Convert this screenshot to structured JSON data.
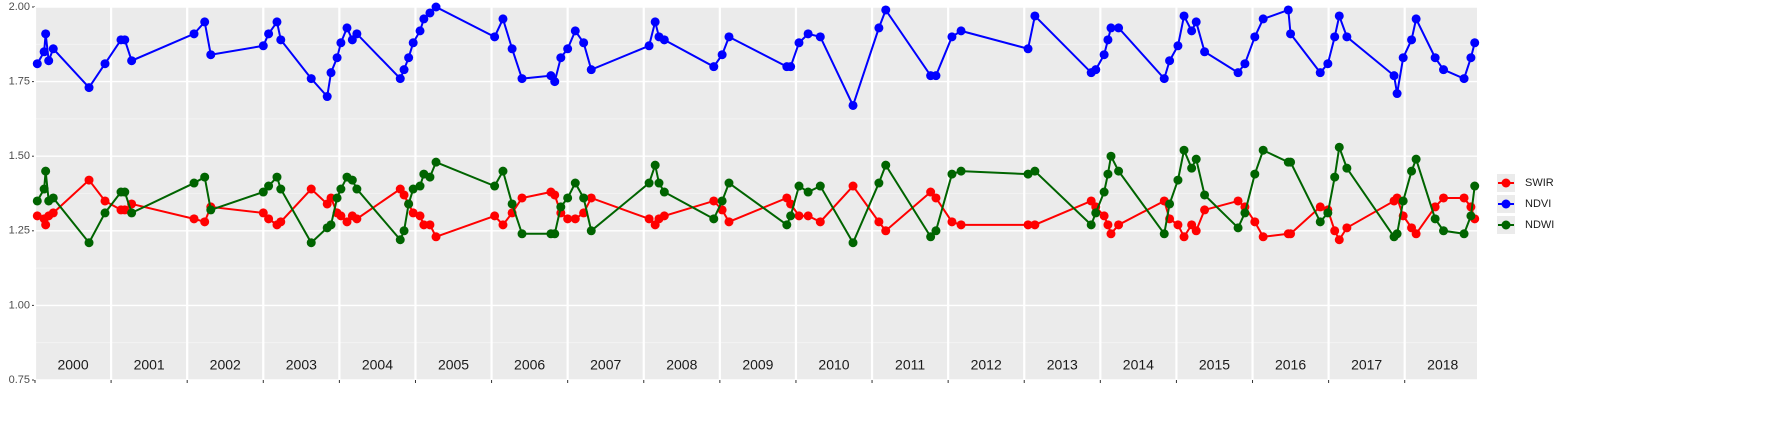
{
  "chart_data": {
    "type": "line",
    "x": [
      2000.03,
      2000.12,
      2000.14,
      2000.18,
      2000.24,
      2000.71,
      2000.92,
      2001.13,
      2001.18,
      2001.27,
      2002.09,
      2002.23,
      2002.31,
      2003.0,
      2003.07,
      2003.18,
      2003.23,
      2003.63,
      2003.84,
      2003.89,
      2003.97,
      2004.02,
      2004.1,
      2004.17,
      2004.23,
      2004.8,
      2004.85,
      2004.91,
      2004.97,
      2005.06,
      2005.11,
      2005.19,
      2005.27,
      2006.04,
      2006.15,
      2006.27,
      2006.4,
      2006.78,
      2006.83,
      2006.91,
      2007.0,
      2007.1,
      2007.21,
      2007.31,
      2008.07,
      2008.15,
      2008.2,
      2008.27,
      2008.92,
      2009.03,
      2009.12,
      2009.88,
      2009.93,
      2010.04,
      2010.16,
      2010.32,
      2010.75,
      2011.09,
      2011.18,
      2011.77,
      2011.84,
      2012.05,
      2012.17,
      2013.05,
      2013.14,
      2013.88,
      2013.94,
      2014.05,
      2014.1,
      2014.14,
      2014.24,
      2014.84,
      2014.91,
      2015.02,
      2015.1,
      2015.2,
      2015.26,
      2015.37,
      2015.81,
      2015.9,
      2016.03,
      2016.14,
      2016.47,
      2016.5,
      2016.89,
      2016.99,
      2017.08,
      2017.14,
      2017.24,
      2017.86,
      2017.9,
      2017.98,
      2018.09,
      2018.15,
      2018.4,
      2018.51,
      2018.78,
      2018.87,
      2018.92
    ],
    "series": [
      {
        "name": "SWIR",
        "color": "#ff0000",
        "values": [
          1.3,
          1.29,
          1.27,
          1.3,
          1.31,
          1.42,
          1.35,
          1.32,
          1.32,
          1.34,
          1.29,
          1.28,
          1.33,
          1.31,
          1.29,
          1.27,
          1.28,
          1.39,
          1.34,
          1.36,
          1.31,
          1.3,
          1.28,
          1.3,
          1.29,
          1.39,
          1.37,
          1.34,
          1.31,
          1.3,
          1.27,
          1.27,
          1.23,
          1.3,
          1.27,
          1.31,
          1.36,
          1.38,
          1.37,
          1.31,
          1.29,
          1.29,
          1.31,
          1.36,
          1.29,
          1.27,
          1.29,
          1.3,
          1.35,
          1.32,
          1.28,
          1.36,
          1.34,
          1.3,
          1.3,
          1.28,
          1.4,
          1.28,
          1.25,
          1.38,
          1.36,
          1.28,
          1.27,
          1.27,
          1.27,
          1.35,
          1.33,
          1.3,
          1.27,
          1.24,
          1.27,
          1.35,
          1.29,
          1.27,
          1.23,
          1.27,
          1.25,
          1.32,
          1.35,
          1.33,
          1.28,
          1.23,
          1.24,
          1.24,
          1.33,
          1.32,
          1.25,
          1.22,
          1.26,
          1.35,
          1.36,
          1.3,
          1.26,
          1.24,
          1.33,
          1.36,
          1.36,
          1.33,
          1.29
        ]
      },
      {
        "name": "NDVI",
        "color": "#0000ff",
        "values": [
          1.81,
          1.85,
          1.91,
          1.82,
          1.86,
          1.73,
          1.81,
          1.89,
          1.89,
          1.82,
          1.91,
          1.95,
          1.84,
          1.87,
          1.91,
          1.95,
          1.89,
          1.76,
          1.7,
          1.78,
          1.83,
          1.88,
          1.93,
          1.89,
          1.91,
          1.76,
          1.79,
          1.83,
          1.88,
          1.92,
          1.96,
          1.98,
          2.0,
          1.9,
          1.96,
          1.86,
          1.76,
          1.77,
          1.75,
          1.83,
          1.86,
          1.92,
          1.88,
          1.79,
          1.87,
          1.95,
          1.9,
          1.89,
          1.8,
          1.84,
          1.9,
          1.8,
          1.8,
          1.88,
          1.91,
          1.9,
          1.67,
          1.93,
          1.99,
          1.77,
          1.77,
          1.9,
          1.92,
          1.86,
          1.97,
          1.78,
          1.79,
          1.84,
          1.89,
          1.93,
          1.93,
          1.76,
          1.82,
          1.87,
          1.97,
          1.92,
          1.95,
          1.85,
          1.78,
          1.81,
          1.9,
          1.96,
          1.99,
          1.91,
          1.78,
          1.81,
          1.9,
          1.97,
          1.9,
          1.77,
          1.71,
          1.83,
          1.89,
          1.96,
          1.83,
          1.79,
          1.76,
          1.83,
          1.88
        ]
      },
      {
        "name": "NDWI",
        "color": "#006400",
        "values": [
          1.35,
          1.39,
          1.45,
          1.35,
          1.36,
          1.21,
          1.31,
          1.38,
          1.38,
          1.31,
          1.41,
          1.43,
          1.32,
          1.38,
          1.4,
          1.43,
          1.39,
          1.21,
          1.26,
          1.27,
          1.36,
          1.39,
          1.43,
          1.42,
          1.39,
          1.22,
          1.25,
          1.34,
          1.39,
          1.4,
          1.44,
          1.43,
          1.48,
          1.4,
          1.45,
          1.34,
          1.24,
          1.24,
          1.24,
          1.33,
          1.36,
          1.41,
          1.36,
          1.25,
          1.41,
          1.47,
          1.41,
          1.38,
          1.29,
          1.35,
          1.41,
          1.27,
          1.3,
          1.4,
          1.38,
          1.4,
          1.21,
          1.41,
          1.47,
          1.23,
          1.25,
          1.44,
          1.45,
          1.44,
          1.45,
          1.27,
          1.31,
          1.38,
          1.44,
          1.5,
          1.45,
          1.24,
          1.34,
          1.42,
          1.52,
          1.46,
          1.49,
          1.37,
          1.26,
          1.31,
          1.44,
          1.52,
          1.48,
          1.48,
          1.28,
          1.31,
          1.43,
          1.53,
          1.46,
          1.23,
          1.24,
          1.35,
          1.45,
          1.49,
          1.29,
          1.25,
          1.24,
          1.3,
          1.4
        ]
      }
    ],
    "xlim": [
      2000,
      2018.95
    ],
    "xticks": [
      2000,
      2001,
      2002,
      2003,
      2004,
      2005,
      2006,
      2007,
      2008,
      2009,
      2010,
      2011,
      2012,
      2013,
      2014,
      2015,
      2016,
      2017,
      2018
    ],
    "ylim": [
      0.75,
      2.0
    ],
    "yticks": [
      0.75,
      {
        "value": 1.0,
        "label": "1.00"
      },
      1.25,
      {
        "value": 1.5,
        "label": "1.50"
      },
      1.75,
      {
        "value": 2.0,
        "label": "2.00"
      }
    ],
    "grid": true,
    "legend": "right"
  }
}
